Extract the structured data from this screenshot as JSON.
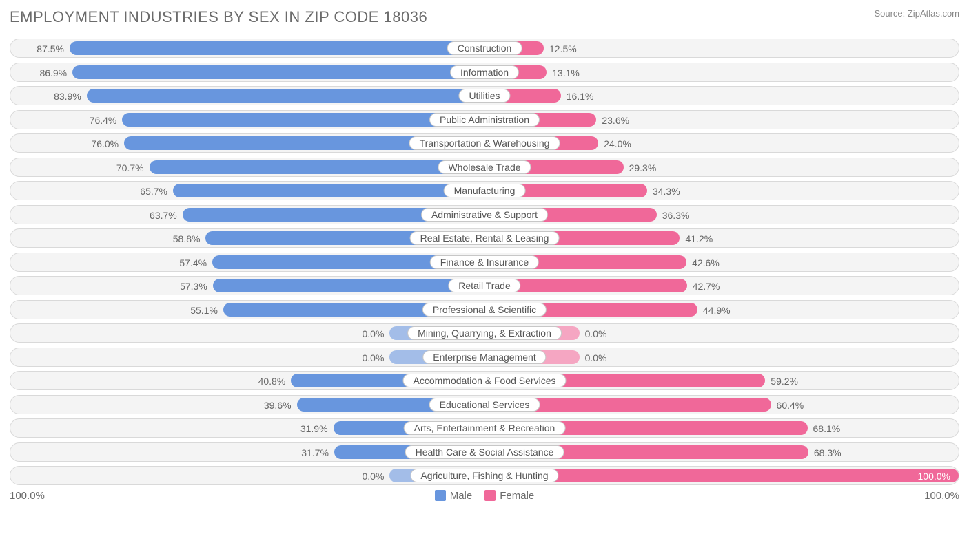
{
  "title": "EMPLOYMENT INDUSTRIES BY SEX IN ZIP CODE 18036",
  "source": "Source: ZipAtlas.com",
  "axis": {
    "left_label": "100.0%",
    "right_label": "100.0%"
  },
  "legend": {
    "male": "Male",
    "female": "Female"
  },
  "colors": {
    "male_bar": "#6896de",
    "female_bar": "#f06899",
    "male_swatch": "#6896de",
    "female_swatch": "#f06899",
    "track_bg": "#f4f4f4",
    "track_border": "#d9d9d9",
    "pill_bg": "#ffffff",
    "pill_border": "#c7c7c7",
    "text": "#6b6b6b",
    "zero_male": "#a3bde8",
    "zero_female": "#f5a6c2"
  },
  "chart": {
    "type": "diverging-bar",
    "half_width_pct": 50,
    "zero_stub_pct": 10,
    "pct_margin": 8,
    "rows": [
      {
        "label": "Construction",
        "male": 87.5,
        "female": 12.5,
        "male_label": "87.5%",
        "female_label": "12.5%"
      },
      {
        "label": "Information",
        "male": 86.9,
        "female": 13.1,
        "male_label": "86.9%",
        "female_label": "13.1%"
      },
      {
        "label": "Utilities",
        "male": 83.9,
        "female": 16.1,
        "male_label": "83.9%",
        "female_label": "16.1%"
      },
      {
        "label": "Public Administration",
        "male": 76.4,
        "female": 23.6,
        "male_label": "76.4%",
        "female_label": "23.6%"
      },
      {
        "label": "Transportation & Warehousing",
        "male": 76.0,
        "female": 24.0,
        "male_label": "76.0%",
        "female_label": "24.0%"
      },
      {
        "label": "Wholesale Trade",
        "male": 70.7,
        "female": 29.3,
        "male_label": "70.7%",
        "female_label": "29.3%"
      },
      {
        "label": "Manufacturing",
        "male": 65.7,
        "female": 34.3,
        "male_label": "65.7%",
        "female_label": "34.3%"
      },
      {
        "label": "Administrative & Support",
        "male": 63.7,
        "female": 36.3,
        "male_label": "63.7%",
        "female_label": "36.3%"
      },
      {
        "label": "Real Estate, Rental & Leasing",
        "male": 58.8,
        "female": 41.2,
        "male_label": "58.8%",
        "female_label": "41.2%"
      },
      {
        "label": "Finance & Insurance",
        "male": 57.4,
        "female": 42.6,
        "male_label": "57.4%",
        "female_label": "42.6%"
      },
      {
        "label": "Retail Trade",
        "male": 57.3,
        "female": 42.7,
        "male_label": "57.3%",
        "female_label": "42.7%"
      },
      {
        "label": "Professional & Scientific",
        "male": 55.1,
        "female": 44.9,
        "male_label": "55.1%",
        "female_label": "44.9%"
      },
      {
        "label": "Mining, Quarrying, & Extraction",
        "male": 0.0,
        "female": 0.0,
        "male_label": "0.0%",
        "female_label": "0.0%"
      },
      {
        "label": "Enterprise Management",
        "male": 0.0,
        "female": 0.0,
        "male_label": "0.0%",
        "female_label": "0.0%"
      },
      {
        "label": "Accommodation & Food Services",
        "male": 40.8,
        "female": 59.2,
        "male_label": "40.8%",
        "female_label": "59.2%"
      },
      {
        "label": "Educational Services",
        "male": 39.6,
        "female": 60.4,
        "male_label": "39.6%",
        "female_label": "60.4%"
      },
      {
        "label": "Arts, Entertainment & Recreation",
        "male": 31.9,
        "female": 68.1,
        "male_label": "31.9%",
        "female_label": "68.1%"
      },
      {
        "label": "Health Care & Social Assistance",
        "male": 31.7,
        "female": 68.3,
        "male_label": "31.7%",
        "female_label": "68.3%"
      },
      {
        "label": "Agriculture, Fishing & Hunting",
        "male": 0.0,
        "female": 100.0,
        "male_label": "0.0%",
        "female_label": "100.0%"
      }
    ]
  }
}
